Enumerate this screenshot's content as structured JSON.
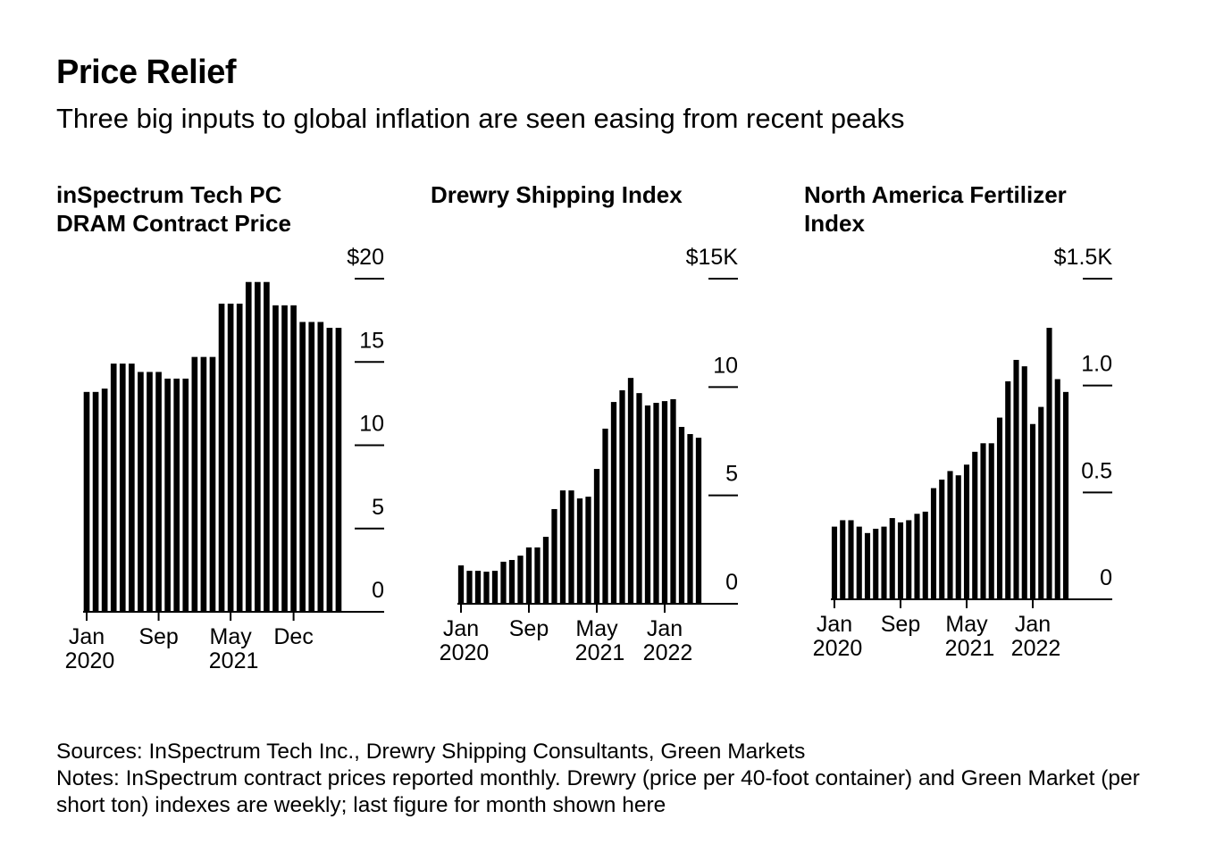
{
  "title": "Price Relief",
  "subtitle": "Three big inputs to global inflation are seen easing from recent peaks",
  "chart_data": [
    {
      "type": "bar",
      "title": "inSpectrum Tech PC DRAM Contract Price",
      "color": "#000000",
      "categories": [
        "Jan 2020",
        null,
        null,
        null,
        null,
        null,
        null,
        null,
        "Sep",
        null,
        null,
        null,
        null,
        null,
        null,
        null,
        "May 2021",
        null,
        null,
        null,
        null,
        null,
        null,
        "Dec",
        null,
        null,
        null,
        null,
        null
      ],
      "values": [
        13.2,
        13.2,
        13.4,
        14.9,
        14.9,
        14.9,
        14.4,
        14.4,
        14.4,
        14.0,
        14.0,
        14.0,
        15.3,
        15.3,
        15.3,
        18.5,
        18.5,
        18.5,
        19.8,
        19.8,
        19.8,
        18.4,
        18.4,
        18.4,
        17.4,
        17.4,
        17.4,
        17.05,
        17.05
      ],
      "ylim": [
        0,
        20
      ],
      "yticks": [
        0,
        5,
        10,
        15,
        {
          "value": 20,
          "label": "$20"
        }
      ]
    },
    {
      "type": "bar",
      "title": "Drewry Shipping Index",
      "color": "#000000",
      "categories": [
        "Jan 2020",
        null,
        null,
        null,
        null,
        null,
        null,
        null,
        "Sep",
        null,
        null,
        null,
        null,
        null,
        null,
        null,
        "May 2021",
        null,
        null,
        null,
        null,
        null,
        null,
        null,
        "Jan 2022",
        null,
        null,
        null,
        null
      ],
      "values": [
        1.77,
        1.52,
        1.52,
        1.48,
        1.52,
        1.94,
        2.02,
        2.22,
        2.6,
        2.6,
        3.09,
        4.37,
        5.23,
        5.23,
        4.86,
        4.94,
        6.22,
        8.08,
        9.31,
        9.85,
        10.42,
        9.72,
        9.15,
        9.27,
        9.35,
        9.44,
        8.16,
        7.83,
        7.66
      ],
      "ylim": [
        0,
        15
      ],
      "yticks": [
        0,
        5,
        10,
        {
          "value": 15,
          "label": "$15K"
        }
      ]
    },
    {
      "type": "bar",
      "title": "North America Fertilizer Index",
      "color": "#000000",
      "categories": [
        "Jan 2020",
        null,
        null,
        null,
        null,
        null,
        null,
        null,
        "Sep",
        null,
        null,
        null,
        null,
        null,
        null,
        null,
        "May 2021",
        null,
        null,
        null,
        null,
        null,
        null,
        null,
        "Jan 2022",
        null,
        null,
        null,
        null
      ],
      "values": [
        0.34,
        0.37,
        0.37,
        0.34,
        0.31,
        0.33,
        0.34,
        0.38,
        0.36,
        0.37,
        0.4,
        0.41,
        0.52,
        0.56,
        0.6,
        0.58,
        0.63,
        0.69,
        0.73,
        0.73,
        0.85,
        1.02,
        1.12,
        1.09,
        0.82,
        0.9,
        1.27,
        1.03,
        0.97
      ],
      "ylim": [
        0,
        1.5
      ],
      "yticks": [
        0,
        0.5,
        {
          "value": 1,
          "label": "1.0"
        },
        {
          "value": 1.5,
          "label": "$1.5K"
        }
      ]
    }
  ],
  "sources": "Sources: InSpectrum Tech Inc., Drewry Shipping Consultants, Green Markets",
  "notes": "Notes: InSpectrum contract prices reported monthly. Drewry (price per 40-foot container) and Green Market (per short ton) indexes are weekly; last figure for month shown here"
}
